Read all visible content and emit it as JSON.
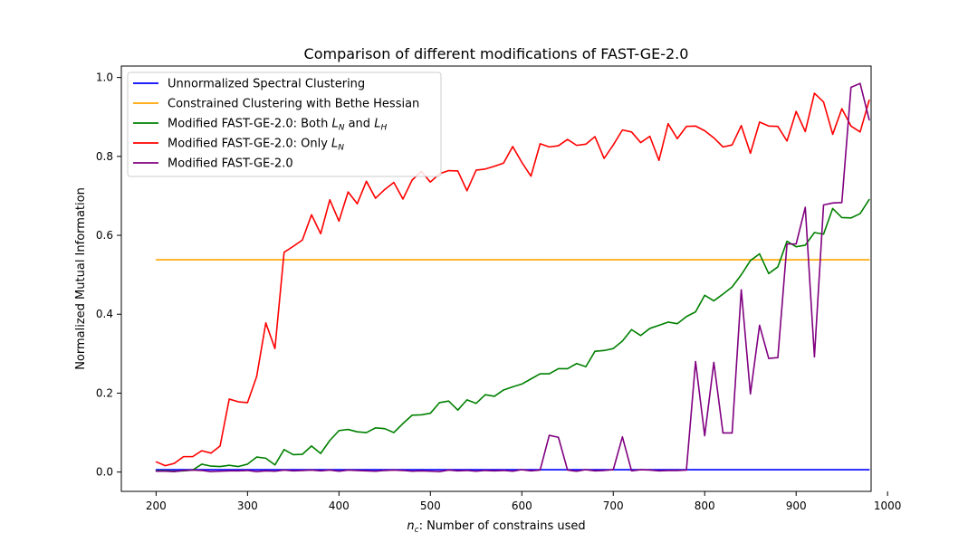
{
  "chart_data": {
    "type": "line",
    "title": "Comparison of different modifications of FAST-GE-2.0",
    "xlabel": "n_c: Number of constrains used",
    "xlabel_parts": {
      "n": "n",
      "sub": "c",
      "rest": ": Number of constrains used"
    },
    "ylabel": "Normalized Mutual Information",
    "xlim": [
      162,
      982
    ],
    "ylim": [
      -0.049,
      1.029
    ],
    "xticks": [
      200,
      300,
      400,
      500,
      600,
      700,
      800,
      900,
      1000
    ],
    "yticks": [
      0.0,
      0.2,
      0.4,
      0.6,
      0.8,
      1.0
    ],
    "ytick_labels": [
      "0.0",
      "0.2",
      "0.4",
      "0.6",
      "0.8",
      "1.0"
    ],
    "grid": false,
    "legend_position": "upper-left",
    "x": [
      200,
      210,
      220,
      230,
      240,
      250,
      260,
      270,
      280,
      290,
      300,
      310,
      320,
      330,
      340,
      350,
      360,
      370,
      380,
      390,
      400,
      410,
      420,
      430,
      440,
      450,
      460,
      470,
      480,
      490,
      500,
      510,
      520,
      530,
      540,
      550,
      560,
      570,
      580,
      590,
      600,
      610,
      620,
      630,
      640,
      650,
      660,
      670,
      680,
      690,
      700,
      710,
      720,
      730,
      740,
      750,
      760,
      770,
      780,
      790,
      800,
      810,
      820,
      830,
      840,
      850,
      860,
      870,
      880,
      890,
      900,
      910,
      920,
      930,
      940,
      950,
      960,
      970,
      980
    ],
    "series": [
      {
        "name": "Unnormalized Spectral Clustering",
        "legend_parts": {
          "text": "Unnormalized Spectral Clustering"
        },
        "color": "#0000ff",
        "values": [
          0.006,
          0.006,
          0.006,
          0.006,
          0.006,
          0.006,
          0.006,
          0.006,
          0.006,
          0.006,
          0.006,
          0.006,
          0.006,
          0.006,
          0.006,
          0.006,
          0.006,
          0.006,
          0.006,
          0.006,
          0.006,
          0.006,
          0.006,
          0.006,
          0.006,
          0.006,
          0.006,
          0.006,
          0.006,
          0.006,
          0.006,
          0.006,
          0.006,
          0.006,
          0.006,
          0.006,
          0.006,
          0.006,
          0.006,
          0.006,
          0.006,
          0.006,
          0.006,
          0.006,
          0.006,
          0.006,
          0.006,
          0.006,
          0.006,
          0.006,
          0.006,
          0.006,
          0.006,
          0.006,
          0.006,
          0.006,
          0.006,
          0.006,
          0.006,
          0.006,
          0.006,
          0.006,
          0.006,
          0.006,
          0.006,
          0.006,
          0.006,
          0.006,
          0.006,
          0.006,
          0.006,
          0.006,
          0.006,
          0.006,
          0.006,
          0.006,
          0.006,
          0.006,
          0.006
        ]
      },
      {
        "name": "Constrained Clustering with Bethe Hessian",
        "legend_parts": {
          "text": "Constrained Clustering with Bethe Hessian"
        },
        "color": "#ffa500",
        "values": [
          0.538,
          0.538,
          0.538,
          0.538,
          0.538,
          0.538,
          0.538,
          0.538,
          0.538,
          0.538,
          0.538,
          0.538,
          0.538,
          0.538,
          0.538,
          0.538,
          0.538,
          0.538,
          0.538,
          0.538,
          0.538,
          0.538,
          0.538,
          0.538,
          0.538,
          0.538,
          0.538,
          0.538,
          0.538,
          0.538,
          0.538,
          0.538,
          0.538,
          0.538,
          0.538,
          0.538,
          0.538,
          0.538,
          0.538,
          0.538,
          0.538,
          0.538,
          0.538,
          0.538,
          0.538,
          0.538,
          0.538,
          0.538,
          0.538,
          0.538,
          0.538,
          0.538,
          0.538,
          0.538,
          0.538,
          0.538,
          0.538,
          0.538,
          0.538,
          0.538,
          0.538,
          0.538,
          0.538,
          0.538,
          0.538,
          0.538,
          0.538,
          0.538,
          0.538,
          0.538,
          0.538,
          0.538,
          0.538,
          0.538,
          0.538,
          0.538,
          0.538,
          0.538,
          0.538
        ]
      },
      {
        "name": "Modified FAST-GE-2.0: Both L_N and L_H",
        "legend_parts": {
          "pre": "Modified FAST-GE-2.0: Both ",
          "a": "L",
          "a_sub": "N",
          "mid": " and ",
          "b": "L",
          "b_sub": "H"
        },
        "color": "#008000",
        "values": [
          0.003,
          0.003,
          0.002,
          0.003,
          0.005,
          0.02,
          0.015,
          0.014,
          0.017,
          0.014,
          0.02,
          0.038,
          0.035,
          0.018,
          0.057,
          0.044,
          0.045,
          0.066,
          0.047,
          0.08,
          0.105,
          0.108,
          0.102,
          0.1,
          0.112,
          0.11,
          0.1,
          0.123,
          0.144,
          0.145,
          0.149,
          0.176,
          0.18,
          0.157,
          0.183,
          0.174,
          0.196,
          0.192,
          0.208,
          0.216,
          0.223,
          0.236,
          0.249,
          0.249,
          0.262,
          0.262,
          0.275,
          0.267,
          0.306,
          0.308,
          0.313,
          0.332,
          0.361,
          0.346,
          0.364,
          0.372,
          0.38,
          0.376,
          0.394,
          0.406,
          0.448,
          0.434,
          0.451,
          0.469,
          0.5,
          0.536,
          0.553,
          0.503,
          0.52,
          0.585,
          0.571,
          0.575,
          0.607,
          0.603,
          0.668,
          0.645,
          0.644,
          0.655,
          0.691
        ]
      },
      {
        "name": "Modified FAST-GE-2.0: Only L_N",
        "legend_parts": {
          "pre": "Modified FAST-GE-2.0: Only ",
          "a": "L",
          "a_sub": "N"
        },
        "color": "#ff0000",
        "values": [
          0.026,
          0.016,
          0.022,
          0.039,
          0.039,
          0.054,
          0.048,
          0.066,
          0.185,
          0.178,
          0.176,
          0.242,
          0.378,
          0.313,
          0.557,
          0.572,
          0.588,
          0.652,
          0.604,
          0.69,
          0.636,
          0.71,
          0.68,
          0.737,
          0.694,
          0.716,
          0.734,
          0.692,
          0.74,
          0.762,
          0.735,
          0.756,
          0.764,
          0.763,
          0.713,
          0.765,
          0.768,
          0.775,
          0.783,
          0.825,
          0.785,
          0.75,
          0.832,
          0.824,
          0.827,
          0.843,
          0.828,
          0.831,
          0.85,
          0.795,
          0.829,
          0.867,
          0.862,
          0.835,
          0.851,
          0.79,
          0.883,
          0.845,
          0.876,
          0.877,
          0.865,
          0.847,
          0.824,
          0.829,
          0.878,
          0.808,
          0.887,
          0.877,
          0.876,
          0.839,
          0.914,
          0.863,
          0.96,
          0.938,
          0.856,
          0.921,
          0.877,
          0.862,
          0.943
        ]
      },
      {
        "name": "Modified FAST-GE-2.0",
        "legend_parts": {
          "text": "Modified FAST-GE-2.0"
        },
        "color": "#800080",
        "values": [
          0.002,
          0.002,
          0.001,
          0.004,
          0.005,
          0.004,
          0.001,
          0.002,
          0.003,
          0.003,
          0.004,
          0.001,
          0.003,
          0.002,
          0.005,
          0.003,
          0.004,
          0.005,
          0.003,
          0.005,
          0.002,
          0.005,
          0.004,
          0.003,
          0.002,
          0.004,
          0.005,
          0.004,
          0.002,
          0.003,
          0.002,
          0.001,
          0.005,
          0.003,
          0.004,
          0.002,
          0.004,
          0.003,
          0.004,
          0.002,
          0.006,
          0.003,
          0.005,
          0.093,
          0.088,
          0.005,
          0.002,
          0.006,
          0.003,
          0.004,
          0.006,
          0.089,
          0.003,
          0.006,
          0.005,
          0.003,
          0.004,
          0.004,
          0.005,
          0.28,
          0.092,
          0.278,
          0.099,
          0.099,
          0.462,
          0.198,
          0.372,
          0.288,
          0.29,
          0.578,
          0.578,
          0.671,
          0.292,
          0.677,
          0.682,
          0.683,
          0.975,
          0.985,
          0.892
        ]
      }
    ]
  }
}
